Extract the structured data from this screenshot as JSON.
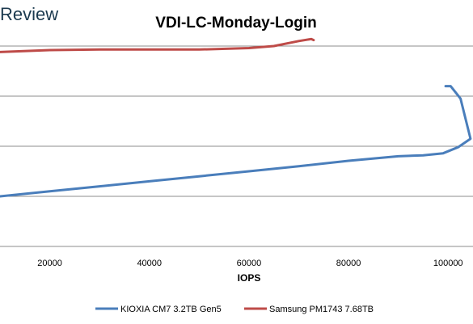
{
  "brand": {
    "partial_logo_text": "Review",
    "color": "#1c3a4f"
  },
  "chart_data": {
    "type": "line",
    "title": "VDI-LC-Monday-Login",
    "xlabel": "IOPS",
    "ylabel": "",
    "x_ticks": [
      20000,
      40000,
      60000,
      80000,
      100000
    ],
    "x_tick_labels": [
      "20000",
      "40000",
      "60000",
      "80000",
      "100000"
    ],
    "xlim": [
      10000,
      105000
    ],
    "ylim": [
      0,
      4
    ],
    "y_gridlines": [
      0,
      1,
      2,
      3,
      4
    ],
    "y_tick_labels_visible": false,
    "grid": true,
    "legend_position": "bottom",
    "series": [
      {
        "name": "KIOXIA CM7 3.2TB Gen5",
        "color": "#4a7ebb",
        "points": [
          [
            10000,
            1.0
          ],
          [
            20000,
            1.1
          ],
          [
            30000,
            1.2
          ],
          [
            40000,
            1.3
          ],
          [
            50000,
            1.4
          ],
          [
            60000,
            1.5
          ],
          [
            70000,
            1.6
          ],
          [
            80000,
            1.71
          ],
          [
            90000,
            1.8
          ],
          [
            95000,
            1.82
          ],
          [
            99000,
            1.86
          ],
          [
            102000,
            1.98
          ],
          [
            104500,
            2.15
          ],
          [
            102500,
            2.95
          ],
          [
            100500,
            3.2
          ],
          [
            99500,
            3.2
          ]
        ]
      },
      {
        "name": "Samsung PM1743 7.68TB",
        "color": "#be4b48",
        "points": [
          [
            10000,
            3.88
          ],
          [
            20000,
            3.92
          ],
          [
            30000,
            3.93
          ],
          [
            40000,
            3.93
          ],
          [
            50000,
            3.93
          ],
          [
            60000,
            3.96
          ],
          [
            65000,
            4.0
          ],
          [
            70000,
            4.1
          ],
          [
            72500,
            4.14
          ],
          [
            73000,
            4.12
          ]
        ]
      }
    ]
  }
}
